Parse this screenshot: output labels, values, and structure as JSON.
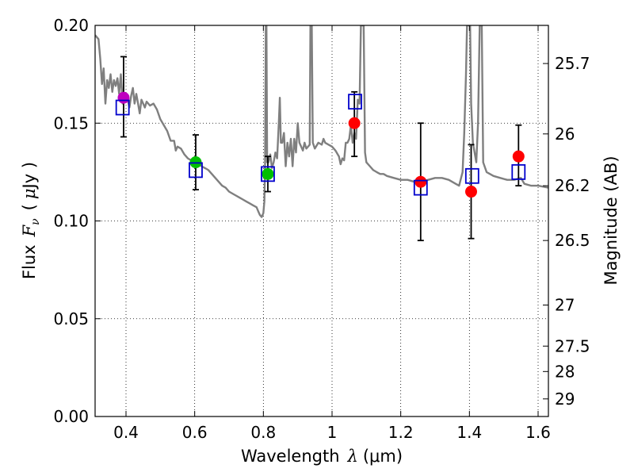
{
  "chart_data": {
    "type": "scatter",
    "title": "",
    "xlabel": "Wavelength  λ (μm)",
    "xlabel_parts": {
      "prefix": "Wavelength",
      "symbol": "λ",
      "unit": "(μm)"
    },
    "ylabel": "Flux  Fν  ( μJy )",
    "ylabel_parts": {
      "prefix": "Flux",
      "symbol": "F",
      "subscript": "ν",
      "unit_open": "(",
      "unit_mu": "μ",
      "unit_rest": "Jy )"
    },
    "ylabel_right": "Magnitude (AB)",
    "xlim": [
      0.31,
      1.63
    ],
    "ylim": [
      0.0,
      0.2
    ],
    "grid": true,
    "x_ticks": [
      {
        "value": 0.4,
        "label": "0.4"
      },
      {
        "value": 0.6,
        "label": "0.6"
      },
      {
        "value": 0.8,
        "label": "0.8"
      },
      {
        "value": 1.0,
        "label": "1"
      },
      {
        "value": 1.2,
        "label": "1.2"
      },
      {
        "value": 1.4,
        "label": "1.4"
      },
      {
        "value": 1.6,
        "label": "1.6"
      }
    ],
    "y_ticks": [
      {
        "value": 0.0,
        "label": "0.00"
      },
      {
        "value": 0.05,
        "label": "0.05"
      },
      {
        "value": 0.1,
        "label": "0.10"
      },
      {
        "value": 0.15,
        "label": "0.15"
      },
      {
        "value": 0.2,
        "label": "0.20"
      }
    ],
    "right_ticks": [
      {
        "flux": 0.1805,
        "label": "25.7"
      },
      {
        "flux": 0.1445,
        "label": "26"
      },
      {
        "flux": 0.118,
        "label": "26.2"
      },
      {
        "flux": 0.09,
        "label": "26.5"
      },
      {
        "flux": 0.057,
        "label": "27"
      },
      {
        "flux": 0.036,
        "label": "27.5"
      },
      {
        "flux": 0.023,
        "label": "28"
      },
      {
        "flux": 0.009,
        "label": "29"
      }
    ],
    "series": [
      {
        "name": "model-sed",
        "kind": "line",
        "color": "#7f7f7f",
        "points": [
          [
            0.31,
            0.195
          ],
          [
            0.32,
            0.193
          ],
          [
            0.325,
            0.183
          ],
          [
            0.33,
            0.17
          ],
          [
            0.335,
            0.178
          ],
          [
            0.34,
            0.16
          ],
          [
            0.345,
            0.172
          ],
          [
            0.35,
            0.168
          ],
          [
            0.355,
            0.175
          ],
          [
            0.36,
            0.166
          ],
          [
            0.365,
            0.172
          ],
          [
            0.37,
            0.169
          ],
          [
            0.375,
            0.173
          ],
          [
            0.38,
            0.165
          ],
          [
            0.385,
            0.175
          ],
          [
            0.39,
            0.16
          ],
          [
            0.395,
            0.163
          ],
          [
            0.4,
            0.164
          ],
          [
            0.405,
            0.162
          ],
          [
            0.41,
            0.158
          ],
          [
            0.415,
            0.164
          ],
          [
            0.42,
            0.168
          ],
          [
            0.425,
            0.16
          ],
          [
            0.43,
            0.165
          ],
          [
            0.435,
            0.16
          ],
          [
            0.44,
            0.155
          ],
          [
            0.445,
            0.162
          ],
          [
            0.45,
            0.16
          ],
          [
            0.455,
            0.158
          ],
          [
            0.46,
            0.161
          ],
          [
            0.47,
            0.159
          ],
          [
            0.48,
            0.16
          ],
          [
            0.49,
            0.157
          ],
          [
            0.5,
            0.152
          ],
          [
            0.51,
            0.149
          ],
          [
            0.52,
            0.146
          ],
          [
            0.53,
            0.141
          ],
          [
            0.54,
            0.141
          ],
          [
            0.545,
            0.136
          ],
          [
            0.55,
            0.138
          ],
          [
            0.56,
            0.137
          ],
          [
            0.57,
            0.134
          ],
          [
            0.58,
            0.132
          ],
          [
            0.59,
            0.131
          ],
          [
            0.6,
            0.13
          ],
          [
            0.61,
            0.129
          ],
          [
            0.62,
            0.128
          ],
          [
            0.63,
            0.127
          ],
          [
            0.64,
            0.126
          ],
          [
            0.65,
            0.124
          ],
          [
            0.66,
            0.122
          ],
          [
            0.67,
            0.12
          ],
          [
            0.68,
            0.118
          ],
          [
            0.69,
            0.117
          ],
          [
            0.7,
            0.115
          ],
          [
            0.71,
            0.114
          ],
          [
            0.72,
            0.113
          ],
          [
            0.73,
            0.112
          ],
          [
            0.74,
            0.111
          ],
          [
            0.75,
            0.11
          ],
          [
            0.76,
            0.109
          ],
          [
            0.77,
            0.108
          ],
          [
            0.78,
            0.107
          ],
          [
            0.785,
            0.105
          ],
          [
            0.79,
            0.103
          ],
          [
            0.795,
            0.102
          ],
          [
            0.8,
            0.104
          ],
          [
            0.803,
            0.11
          ],
          [
            0.805,
            0.13
          ],
          [
            0.807,
            0.2
          ],
          [
            0.809,
            0.2
          ],
          [
            0.811,
            0.13
          ],
          [
            0.815,
            0.13
          ],
          [
            0.82,
            0.134
          ],
          [
            0.825,
            0.127
          ],
          [
            0.83,
            0.13
          ],
          [
            0.835,
            0.135
          ],
          [
            0.84,
            0.132
          ],
          [
            0.845,
            0.15
          ],
          [
            0.848,
            0.163
          ],
          [
            0.851,
            0.14
          ],
          [
            0.855,
            0.14
          ],
          [
            0.86,
            0.145
          ],
          [
            0.865,
            0.128
          ],
          [
            0.87,
            0.14
          ],
          [
            0.875,
            0.133
          ],
          [
            0.88,
            0.142
          ],
          [
            0.885,
            0.128
          ],
          [
            0.89,
            0.142
          ],
          [
            0.895,
            0.135
          ],
          [
            0.9,
            0.15
          ],
          [
            0.905,
            0.14
          ],
          [
            0.91,
            0.138
          ],
          [
            0.915,
            0.136
          ],
          [
            0.92,
            0.14
          ],
          [
            0.925,
            0.137
          ],
          [
            0.93,
            0.138
          ],
          [
            0.935,
            0.139
          ],
          [
            0.937,
            0.2
          ],
          [
            0.941,
            0.2
          ],
          [
            0.944,
            0.14
          ],
          [
            0.95,
            0.137
          ],
          [
            0.96,
            0.14
          ],
          [
            0.97,
            0.139
          ],
          [
            0.975,
            0.142
          ],
          [
            0.98,
            0.14
          ],
          [
            0.99,
            0.139
          ],
          [
            1.0,
            0.138
          ],
          [
            1.01,
            0.136
          ],
          [
            1.02,
            0.133
          ],
          [
            1.025,
            0.129
          ],
          [
            1.03,
            0.132
          ],
          [
            1.035,
            0.131
          ],
          [
            1.04,
            0.14
          ],
          [
            1.045,
            0.14
          ],
          [
            1.05,
            0.142
          ],
          [
            1.055,
            0.149
          ],
          [
            1.06,
            0.14
          ],
          [
            1.065,
            0.145
          ],
          [
            1.07,
            0.142
          ],
          [
            1.075,
            0.162
          ],
          [
            1.08,
            0.16
          ],
          [
            1.084,
            0.2
          ],
          [
            1.092,
            0.2
          ],
          [
            1.096,
            0.135
          ],
          [
            1.1,
            0.13
          ],
          [
            1.11,
            0.128
          ],
          [
            1.12,
            0.126
          ],
          [
            1.13,
            0.125
          ],
          [
            1.14,
            0.124
          ],
          [
            1.15,
            0.124
          ],
          [
            1.16,
            0.123
          ],
          [
            1.18,
            0.122
          ],
          [
            1.2,
            0.121
          ],
          [
            1.22,
            0.121
          ],
          [
            1.24,
            0.12
          ],
          [
            1.26,
            0.12
          ],
          [
            1.28,
            0.121
          ],
          [
            1.3,
            0.122
          ],
          [
            1.32,
            0.122
          ],
          [
            1.34,
            0.121
          ],
          [
            1.36,
            0.119
          ],
          [
            1.37,
            0.118
          ],
          [
            1.38,
            0.125
          ],
          [
            1.385,
            0.145
          ],
          [
            1.39,
            0.175
          ],
          [
            1.393,
            0.2
          ],
          [
            1.402,
            0.2
          ],
          [
            1.405,
            0.16
          ],
          [
            1.41,
            0.14
          ],
          [
            1.42,
            0.13
          ],
          [
            1.425,
            0.15
          ],
          [
            1.43,
            0.2
          ],
          [
            1.436,
            0.2
          ],
          [
            1.44,
            0.13
          ],
          [
            1.45,
            0.125
          ],
          [
            1.47,
            0.123
          ],
          [
            1.49,
            0.122
          ],
          [
            1.51,
            0.121
          ],
          [
            1.53,
            0.121
          ],
          [
            1.55,
            0.122
          ],
          [
            1.56,
            0.119
          ],
          [
            1.58,
            0.118
          ],
          [
            1.6,
            0.118
          ],
          [
            1.63,
            0.117
          ]
        ]
      },
      {
        "name": "model-photometry",
        "kind": "open-square",
        "color": "#0000cc",
        "points": [
          [
            0.39,
            0.158
          ],
          [
            0.603,
            0.126
          ],
          [
            0.813,
            0.124
          ],
          [
            1.067,
            0.161
          ],
          [
            1.258,
            0.117
          ],
          [
            1.408,
            0.123
          ],
          [
            1.543,
            0.125
          ]
        ]
      },
      {
        "name": "observed-flux",
        "kind": "filled-circle",
        "points": [
          {
            "x": 0.393,
            "y": 0.163,
            "color": "#bf00bf"
          },
          {
            "x": 0.603,
            "y": 0.13,
            "color": "#00bf00"
          },
          {
            "x": 0.813,
            "y": 0.124,
            "color": "#00bf00"
          },
          {
            "x": 1.065,
            "y": 0.15,
            "color": "#ff0000"
          },
          {
            "x": 1.258,
            "y": 0.12,
            "color": "#ff0000"
          },
          {
            "x": 1.405,
            "y": 0.115,
            "color": "#ff0000"
          },
          {
            "x": 1.543,
            "y": 0.133,
            "color": "#ff0000"
          }
        ]
      },
      {
        "name": "error-bars",
        "kind": "errorbar",
        "color": "#000000",
        "points": [
          {
            "x": 0.393,
            "low": 0.143,
            "high": 0.184
          },
          {
            "x": 0.603,
            "low": 0.116,
            "high": 0.144
          },
          {
            "x": 0.813,
            "low": 0.115,
            "high": 0.133
          },
          {
            "x": 1.065,
            "low": 0.133,
            "high": 0.166
          },
          {
            "x": 1.258,
            "low": 0.09,
            "high": 0.15
          },
          {
            "x": 1.405,
            "low": 0.091,
            "high": 0.139
          },
          {
            "x": 1.543,
            "low": 0.118,
            "high": 0.149
          }
        ]
      }
    ]
  }
}
